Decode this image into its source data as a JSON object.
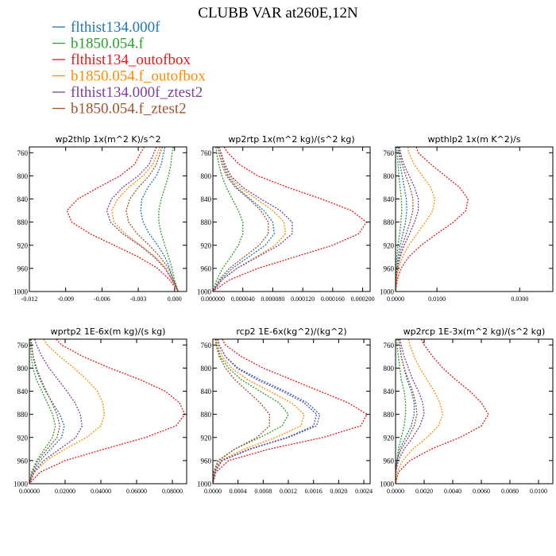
{
  "title": "CLUBB VAR at260E,12N",
  "legend": [
    {
      "name": "flthist134.000f",
      "color": "#1f77b4"
    },
    {
      "name": "b1850.054.f",
      "color": "#2ca02c"
    },
    {
      "name": "flthist134_outofbox",
      "color": "#e41a1c"
    },
    {
      "name": "b1850.054.f_outofbox",
      "color": "#ff8c00"
    },
    {
      "name": "flthist134.000f_ztest2",
      "color": "#7b3fa0"
    },
    {
      "name": "b1850.054.f_ztest2",
      "color": "#a0522d"
    }
  ],
  "chart_data": [
    {
      "type": "line",
      "title": "wp2thlp  1x(m^2 K)/s^2",
      "xlim": [
        -0.012,
        0.001
      ],
      "ylim": [
        1000,
        750
      ],
      "xticks": [
        -0.012,
        -0.009,
        -0.006,
        -0.003,
        0.0
      ],
      "xtick_labels": [
        "-0.012",
        "-0.009",
        "-0.006",
        "-0.003",
        "0.000"
      ],
      "yticks": [
        760,
        800,
        840,
        880,
        920,
        960,
        1000
      ],
      "ytick_labels": [
        "760",
        "800",
        "840",
        "880",
        "920",
        "960",
        "1000"
      ],
      "y": [
        750,
        760,
        780,
        800,
        820,
        840,
        860,
        880,
        900,
        920,
        940,
        960,
        980,
        1000
      ],
      "series": [
        {
          "name": "flthist134.000f",
          "values": [
            -0.0008,
            -0.0009,
            -0.0011,
            -0.0015,
            -0.0022,
            -0.0027,
            -0.0028,
            -0.0026,
            -0.0021,
            -0.0014,
            -0.0008,
            -0.0004,
            -0.0001,
            0.0003
          ]
        },
        {
          "name": "b1850.054.f",
          "values": [
            -0.0001,
            -0.0002,
            -0.0003,
            -0.0005,
            -0.0008,
            -0.0011,
            -0.0013,
            -0.0013,
            -0.0011,
            -0.0008,
            -0.0005,
            -0.0002,
            0.0,
            0.0003
          ]
        },
        {
          "name": "flthist134_outofbox",
          "values": [
            -0.0025,
            -0.0028,
            -0.0033,
            -0.0045,
            -0.0063,
            -0.008,
            -0.0089,
            -0.0085,
            -0.007,
            -0.005,
            -0.003,
            -0.0014,
            -0.0004,
            0.0003
          ]
        },
        {
          "name": "b1850.054.f_outofbox",
          "values": [
            -0.0012,
            -0.0014,
            -0.0018,
            -0.0026,
            -0.0038,
            -0.0047,
            -0.0052,
            -0.005,
            -0.0041,
            -0.0028,
            -0.0016,
            -0.0007,
            -0.0002,
            0.0003
          ]
        },
        {
          "name": "flthist134.000f_ztest2",
          "values": [
            -0.0015,
            -0.0017,
            -0.0021,
            -0.003,
            -0.0043,
            -0.0052,
            -0.0056,
            -0.0053,
            -0.0043,
            -0.0029,
            -0.0017,
            -0.0008,
            -0.0002,
            0.0003
          ]
        },
        {
          "name": "b1850.054.f_ztest2",
          "values": [
            -0.001,
            -0.0012,
            -0.0015,
            -0.0021,
            -0.003,
            -0.0037,
            -0.004,
            -0.0038,
            -0.0031,
            -0.0021,
            -0.0012,
            -0.0005,
            -0.0001,
            0.0003
          ]
        }
      ]
    },
    {
      "type": "line",
      "title": "wp2rtp  1x(m^2 kg)/(s^2 kg)",
      "xlim": [
        0.0,
        0.00021
      ],
      "ylim": [
        1000,
        750
      ],
      "xticks": [
        0.0,
        4e-05,
        8e-05,
        0.00012,
        0.00016,
        0.0002
      ],
      "xtick_labels": [
        "0.000000",
        "0.000040",
        "0.000080",
        "0.000120",
        "0.000160",
        "0.000200"
      ],
      "yticks": [
        760,
        800,
        840,
        880,
        920,
        960,
        1000
      ],
      "ytick_labels": [
        "760",
        "800",
        "840",
        "880",
        "920",
        "960",
        "1000"
      ],
      "y": [
        750,
        760,
        780,
        800,
        820,
        840,
        860,
        880,
        900,
        920,
        940,
        960,
        980,
        1000
      ],
      "series": [
        {
          "name": "flthist134.000f",
          "values": [
            8e-06,
            1e-05,
            1.4e-05,
            2e-05,
            3.2e-05,
            5e-05,
            6.8e-05,
            8e-05,
            8.2e-05,
            7e-05,
            4.8e-05,
            2.6e-05,
            1e-05,
            0.0
          ]
        },
        {
          "name": "b1850.054.f",
          "values": [
            4e-06,
            5e-06,
            8e-06,
            1.2e-05,
            1.8e-05,
            2.6e-05,
            3.4e-05,
            4e-05,
            4e-05,
            3.4e-05,
            2.4e-05,
            1.3e-05,
            5e-06,
            0.0
          ]
        },
        {
          "name": "flthist134_outofbox",
          "values": [
            1.5e-05,
            2e-05,
            3.5e-05,
            6e-05,
            0.0001,
            0.000145,
            0.000185,
            0.000205,
            0.000195,
            0.00016,
            0.00011,
            6e-05,
            2.2e-05,
            0.0
          ]
        },
        {
          "name": "b1850.054.f_outofbox",
          "values": [
            8e-06,
            1e-05,
            1.5e-05,
            2.2e-05,
            3.6e-05,
            5.8e-05,
            8e-05,
            9.5e-05,
            9.7e-05,
            8.3e-05,
            5.8e-05,
            3.2e-05,
            1.2e-05,
            0.0
          ]
        },
        {
          "name": "flthist134.000f_ztest2",
          "values": [
            8e-06,
            1.1e-05,
            1.6e-05,
            2.4e-05,
            4e-05,
            6.4e-05,
            9e-05,
            0.000106,
            0.000106,
            8.8e-05,
            6e-05,
            3.2e-05,
            1.2e-05,
            0.0
          ]
        },
        {
          "name": "b1850.054.f_ztest2",
          "values": [
            6e-06,
            8e-06,
            1.2e-05,
            1.8e-05,
            3e-05,
            4.8e-05,
            6.4e-05,
            7.4e-05,
            7.4e-05,
            6.2e-05,
            4.2e-05,
            2.2e-05,
            8e-06,
            0.0
          ]
        }
      ]
    },
    {
      "type": "line",
      "title": "wpthlp2  1x(m K^2)/s",
      "xlim": [
        0.0,
        0.038
      ],
      "ylim": [
        1000,
        750
      ],
      "xticks": [
        0.0,
        0.01,
        0.03
      ],
      "xtick_labels": [
        "0.0000",
        "0.0100",
        "0.0300"
      ],
      "yticks": [
        760,
        800,
        840,
        880,
        920,
        960,
        1000
      ],
      "ytick_labels": [
        "760",
        "800",
        "840",
        "880",
        "920",
        "960",
        "1000"
      ],
      "y": [
        750,
        760,
        780,
        800,
        820,
        840,
        860,
        880,
        900,
        920,
        940,
        960,
        980,
        1000
      ],
      "series": [
        {
          "name": "flthist134.000f",
          "values": [
            0.0006,
            0.0008,
            0.0011,
            0.0016,
            0.0021,
            0.0026,
            0.0027,
            0.0024,
            0.0018,
            0.0011,
            0.0006,
            0.0003,
            0.0001,
            0.0
          ]
        },
        {
          "name": "b1850.054.f",
          "values": [
            0.0003,
            0.0004,
            0.0006,
            0.0008,
            0.0011,
            0.0014,
            0.0015,
            0.0013,
            0.001,
            0.0006,
            0.0003,
            0.0001,
            0.0,
            0.0
          ]
        },
        {
          "name": "flthist134_outofbox",
          "values": [
            0.005,
            0.0055,
            0.0085,
            0.012,
            0.0155,
            0.0175,
            0.017,
            0.014,
            0.01,
            0.0062,
            0.0032,
            0.0013,
            0.0004,
            0.0
          ]
        },
        {
          "name": "b1850.054.f_outofbox",
          "values": [
            0.003,
            0.0032,
            0.0045,
            0.0065,
            0.0085,
            0.0095,
            0.009,
            0.0072,
            0.0052,
            0.0032,
            0.0017,
            0.0007,
            0.0002,
            0.0
          ]
        },
        {
          "name": "flthist134.000f_ztest2",
          "values": [
            0.001,
            0.0012,
            0.002,
            0.0033,
            0.0046,
            0.0055,
            0.0055,
            0.0046,
            0.0034,
            0.0021,
            0.0011,
            0.0005,
            0.0001,
            0.0
          ]
        },
        {
          "name": "b1850.054.f_ztest2",
          "values": [
            0.0008,
            0.001,
            0.0016,
            0.0025,
            0.0035,
            0.0042,
            0.0042,
            0.0035,
            0.0026,
            0.0016,
            0.0009,
            0.0004,
            0.0001,
            0.0
          ]
        }
      ]
    },
    {
      "type": "line",
      "title": "wprtp2  1E-6x(m kg)/(s kg)",
      "xlim": [
        0.0,
        0.088
      ],
      "ylim": [
        1000,
        750
      ],
      "xticks": [
        0.0,
        0.02,
        0.04,
        0.06,
        0.08
      ],
      "xtick_labels": [
        "0.00000",
        "0.02000",
        "0.04000",
        "0.06000",
        "0.08000"
      ],
      "yticks": [
        760,
        800,
        840,
        880,
        920,
        960,
        1000
      ],
      "ytick_labels": [
        "760",
        "800",
        "840",
        "880",
        "920",
        "960",
        "1000"
      ],
      "y": [
        750,
        760,
        780,
        800,
        820,
        840,
        860,
        880,
        900,
        920,
        940,
        960,
        980,
        1000
      ],
      "series": [
        {
          "name": "flthist134.000f",
          "values": [
            0.001,
            0.0012,
            0.002,
            0.0035,
            0.006,
            0.009,
            0.013,
            0.017,
            0.0195,
            0.018,
            0.012,
            0.006,
            0.002,
            0.0
          ]
        },
        {
          "name": "b1850.054.f",
          "values": [
            0.0005,
            0.0006,
            0.001,
            0.002,
            0.004,
            0.007,
            0.01,
            0.013,
            0.0145,
            0.013,
            0.0085,
            0.004,
            0.0012,
            0.0
          ]
        },
        {
          "name": "flthist134_outofbox",
          "values": [
            0.015,
            0.018,
            0.03,
            0.045,
            0.062,
            0.076,
            0.084,
            0.087,
            0.082,
            0.065,
            0.042,
            0.02,
            0.006,
            0.0
          ]
        },
        {
          "name": "b1850.054.f_outofbox",
          "values": [
            0.008,
            0.01,
            0.017,
            0.025,
            0.032,
            0.038,
            0.041,
            0.042,
            0.04,
            0.032,
            0.02,
            0.0095,
            0.003,
            0.0
          ]
        },
        {
          "name": "flthist134.000f_ztest2",
          "values": [
            0.003,
            0.004,
            0.007,
            0.011,
            0.016,
            0.021,
            0.0255,
            0.0285,
            0.0295,
            0.026,
            0.017,
            0.008,
            0.0025,
            0.0
          ]
        },
        {
          "name": "b1850.054.f_ztest2",
          "values": [
            0.001,
            0.0013,
            0.0022,
            0.004,
            0.0065,
            0.0095,
            0.0125,
            0.0155,
            0.017,
            0.0155,
            0.01,
            0.0048,
            0.0015,
            0.0
          ]
        }
      ]
    },
    {
      "type": "line",
      "title": "rcp2  1E-6x(kg^2)/(kg^2)",
      "xlim": [
        0.0,
        0.0025
      ],
      "ylim": [
        1000,
        750
      ],
      "xticks": [
        0.0,
        0.0004,
        0.0008,
        0.0012,
        0.0016,
        0.002,
        0.0024
      ],
      "xtick_labels": [
        "0.0000",
        "0.0004",
        "0.0008",
        "0.0012",
        "0.0016",
        "0.0020",
        "0.0024"
      ],
      "yticks": [
        760,
        800,
        840,
        880,
        920,
        960,
        1000
      ],
      "ytick_labels": [
        "760",
        "800",
        "840",
        "880",
        "920",
        "960",
        "1000"
      ],
      "y": [
        750,
        760,
        780,
        800,
        820,
        840,
        860,
        880,
        900,
        920,
        940,
        960,
        980,
        1000
      ],
      "series": [
        {
          "name": "flthist134.000f",
          "values": [
            8e-05,
            0.0001,
            0.0002,
            0.0004,
            0.00075,
            0.00115,
            0.0015,
            0.0017,
            0.00165,
            0.0012,
            0.0006,
            0.00015,
            3e-05,
            0.0
          ]
        },
        {
          "name": "b1850.054.f",
          "values": [
            5e-05,
            6e-05,
            0.00012,
            0.00025,
            0.00045,
            0.00075,
            0.00105,
            0.0012,
            0.0011,
            0.00075,
            0.00035,
            8e-05,
            1e-05,
            0.0
          ]
        },
        {
          "name": "flthist134_outofbox",
          "values": [
            0.00015,
            0.0002,
            0.00045,
            0.0008,
            0.00125,
            0.0017,
            0.00215,
            0.00245,
            0.00235,
            0.00175,
            0.0009,
            0.00025,
            5e-05,
            0.0
          ]
        },
        {
          "name": "b1850.054.f_outofbox",
          "values": [
            6e-05,
            8e-05,
            0.00015,
            0.0003,
            0.00055,
            0.0009,
            0.00125,
            0.00145,
            0.0014,
            0.001,
            0.0005,
            0.00012,
            2e-05,
            0.0
          ]
        },
        {
          "name": "flthist134.000f_ztest2",
          "values": [
            8e-05,
            0.0001,
            0.0002,
            0.00038,
            0.0007,
            0.0011,
            0.00145,
            0.00165,
            0.0016,
            0.00118,
            0.00058,
            0.00014,
            3e-05,
            0.0
          ]
        },
        {
          "name": "b1850.054.f_ztest2",
          "values": [
            4e-05,
            5e-05,
            0.0001,
            0.0002,
            0.00035,
            0.00055,
            0.00075,
            0.0009,
            0.0009,
            0.0007,
            0.00035,
            9e-05,
            2e-05,
            0.0
          ]
        }
      ]
    },
    {
      "type": "line",
      "title": "wp2rcp  1E-3x(m^2 kg)/(s^2 kg)",
      "xlim": [
        0.0,
        0.011
      ],
      "ylim": [
        1000,
        750
      ],
      "xticks": [
        0.0,
        0.002,
        0.004,
        0.006,
        0.008,
        0.01
      ],
      "xtick_labels": [
        "0.0000",
        "0.0020",
        "0.0040",
        "0.0060",
        "0.0080",
        "0.0100"
      ],
      "yticks": [
        760,
        800,
        840,
        880,
        920,
        960,
        1000
      ],
      "ytick_labels": [
        "760",
        "800",
        "840",
        "880",
        "920",
        "960",
        "1000"
      ],
      "y": [
        750,
        760,
        780,
        800,
        820,
        840,
        860,
        880,
        900,
        920,
        940,
        960,
        980,
        1000
      ],
      "series": [
        {
          "name": "flthist134.000f",
          "values": [
            0.0002,
            0.0003,
            0.0004,
            0.0006,
            0.0008,
            0.0011,
            0.0013,
            0.0013,
            0.0011,
            0.0007,
            0.0003,
            0.0001,
            0.0,
            0.0
          ]
        },
        {
          "name": "b1850.054.f",
          "values": [
            0.0001,
            0.0001,
            0.0002,
            0.0003,
            0.0004,
            0.0006,
            0.0007,
            0.0007,
            0.0006,
            0.0004,
            0.0002,
            0.0001,
            0.0,
            0.0
          ]
        },
        {
          "name": "flthist134_outofbox",
          "values": [
            0.0018,
            0.002,
            0.0026,
            0.0033,
            0.0042,
            0.0052,
            0.006,
            0.0065,
            0.006,
            0.0045,
            0.0025,
            0.001,
            0.0002,
            0.0
          ]
        },
        {
          "name": "b1850.054.f_outofbox",
          "values": [
            0.0009,
            0.001,
            0.0013,
            0.0017,
            0.0022,
            0.0027,
            0.0031,
            0.0033,
            0.003,
            0.0022,
            0.0012,
            0.0005,
            0.0001,
            0.0
          ]
        },
        {
          "name": "flthist134.000f_ztest2",
          "values": [
            0.0003,
            0.0004,
            0.0006,
            0.0009,
            0.0012,
            0.0016,
            0.0019,
            0.002,
            0.0017,
            0.0012,
            0.0006,
            0.0002,
            0.0,
            0.0
          ]
        },
        {
          "name": "b1850.054.f_ztest2",
          "values": [
            0.0002,
            0.0003,
            0.0004,
            0.0006,
            0.0009,
            0.0012,
            0.0014,
            0.0015,
            0.0013,
            0.0009,
            0.0004,
            0.0001,
            0.0,
            0.0
          ]
        }
      ]
    }
  ]
}
